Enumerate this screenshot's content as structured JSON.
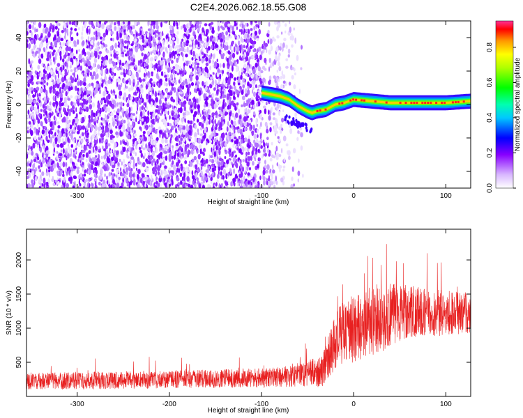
{
  "title": "C2E4.2026.062.18.55.G08",
  "chart_data": [
    {
      "type": "heatmap",
      "name": "spectrogram",
      "xlabel": "Height of straight line (km)",
      "ylabel": "Frequency (Hz)",
      "xlim": [
        -355,
        127
      ],
      "ylim": [
        -50,
        50
      ],
      "xticks": [
        -300,
        -200,
        -100,
        0,
        100
      ],
      "xtick_labels": [
        "-300",
        "-200",
        "-100",
        "0",
        "100"
      ],
      "yticks": [
        -40,
        -20,
        0,
        20,
        40
      ],
      "ytick_labels": [
        "-40",
        "-20",
        "0",
        "20",
        "40"
      ],
      "colorbar": {
        "label": "Normalized spectral amplitude",
        "range": [
          0,
          0.95
        ],
        "ticks": [
          0.0,
          0.2,
          0.4,
          0.6,
          0.8
        ],
        "tick_labels": [
          "0.0",
          "0.2",
          "0.4",
          "0.6",
          "0.8"
        ]
      },
      "signal_trace": {
        "x": [
          -100,
          -80,
          -70,
          -60,
          -50,
          -45,
          -40,
          -30,
          -20,
          -10,
          0,
          20,
          40,
          60,
          80,
          100,
          127
        ],
        "y": [
          7,
          5,
          3,
          -1,
          -4,
          -5,
          -4,
          -3,
          0,
          1,
          3,
          2,
          1,
          1,
          1,
          1,
          2
        ]
      }
    },
    {
      "type": "line",
      "name": "snr",
      "color": "#e82020",
      "xlabel": "Height of straight line (km)",
      "ylabel": "SNR (10 * v/v)",
      "xlim": [
        -355,
        127
      ],
      "ylim": [
        0,
        2450
      ],
      "xticks": [
        -300,
        -200,
        -100,
        0,
        100
      ],
      "xtick_labels": [
        "-300",
        "-200",
        "-100",
        "0",
        "100"
      ],
      "yticks": [
        500,
        1000,
        1500,
        2000
      ],
      "ytick_labels": [
        "500",
        "1000",
        "1500",
        "2000"
      ],
      "envelope": {
        "x": [
          -355,
          -300,
          -200,
          -100,
          -60,
          -45,
          -35,
          -25,
          -15,
          0,
          10,
          20,
          30,
          40,
          60,
          80,
          100,
          127
        ],
        "mean": [
          220,
          230,
          250,
          270,
          300,
          350,
          350,
          650,
          900,
          1000,
          1050,
          1100,
          1150,
          1200,
          1250,
          1230,
          1220,
          1220
        ],
        "spread": [
          120,
          130,
          130,
          140,
          160,
          200,
          220,
          350,
          450,
          500,
          500,
          520,
          520,
          450,
          380,
          360,
          330,
          320
        ]
      }
    }
  ]
}
